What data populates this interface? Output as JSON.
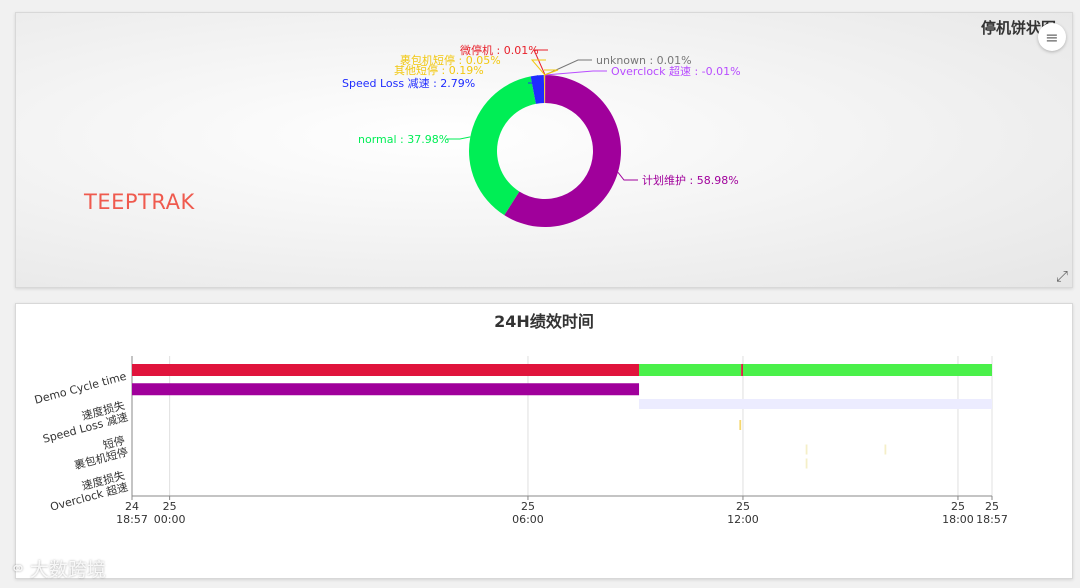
{
  "pie_panel": {
    "title": "停机饼状图",
    "brand": "TEEPTRAK",
    "menu_icon": "hamburger-menu-icon",
    "expand_icon": "fullscreen-expand-icon"
  },
  "gantt_panel": {
    "title": "24H绩效时间"
  },
  "watermark": {
    "text": "大数跨境",
    "icon": "logo-icon"
  },
  "chart_data": [
    {
      "type": "pie",
      "title": "停机饼状图",
      "donut": true,
      "labels": [
        "微停机",
        "裹包机短停",
        "其他短停",
        "Speed Loss 减速",
        "normal",
        "计划维护",
        "Overclock 超速",
        "unknown"
      ],
      "values": [
        0.01,
        0.05,
        0.19,
        2.79,
        37.98,
        58.98,
        -0.01,
        0.01
      ],
      "data_labels": [
        "微停机 : 0.01%",
        "裹包机短停 : 0.05%",
        "其他短停 : 0.19%",
        "Speed Loss 减速 : 2.79%",
        "normal : 37.98%",
        "计划维护 : 58.98%",
        "Overclock 超速 : -0.01%",
        "unknown : 0.01%"
      ],
      "colors": [
        "#e8202a",
        "#f2c811",
        "#f2c811",
        "#1f2cff",
        "#00ee55",
        "#a0009b",
        "#b84cff",
        "#777777"
      ]
    },
    {
      "type": "gantt",
      "title": "24H绩效时间",
      "categories": [
        "Demo Cycle time",
        "速度损失\nSpeed Loss 减速",
        "短停\n裹包机短停",
        "速度损失\nOverclock 超速"
      ],
      "x_ticks": [
        {
          "t": 0,
          "day": "24",
          "time": "18:57"
        },
        {
          "t": 1.05,
          "day": "25",
          "time": "00:00"
        },
        {
          "t": 11.05,
          "day": "25",
          "time": "06:00"
        },
        {
          "t": 17.05,
          "day": "25",
          "time": "12:00"
        },
        {
          "t": 23.05,
          "day": "25",
          "time": "18:00"
        },
        {
          "t": 24,
          "day": "25",
          "time": "18:57"
        }
      ],
      "x_range": [
        0,
        24
      ],
      "segments": [
        {
          "row": 0,
          "start": 0,
          "end": 14.15,
          "color": "#e0143c"
        },
        {
          "row": 0,
          "start": 14.15,
          "end": 17.0,
          "color": "#4af04a"
        },
        {
          "row": 0,
          "start": 17.0,
          "end": 17.05,
          "color": "#e0143c"
        },
        {
          "row": 0,
          "start": 17.05,
          "end": 24,
          "color": "#4af04a"
        },
        {
          "row": 0.55,
          "start": 0,
          "end": 14.15,
          "color": "#a0009b"
        },
        {
          "row": 1,
          "start": 14.15,
          "end": 24,
          "color": "#ececff"
        },
        {
          "row": 1.6,
          "start": 16.95,
          "end": 17.0,
          "color": "#f5d76e"
        },
        {
          "row": 2.3,
          "start": 18.8,
          "end": 18.85,
          "color": "#f5efc8"
        },
        {
          "row": 2.3,
          "start": 21.0,
          "end": 21.05,
          "color": "#f5efc8"
        },
        {
          "row": 2.7,
          "start": 18.8,
          "end": 18.85,
          "color": "#f5efc8"
        }
      ]
    }
  ]
}
